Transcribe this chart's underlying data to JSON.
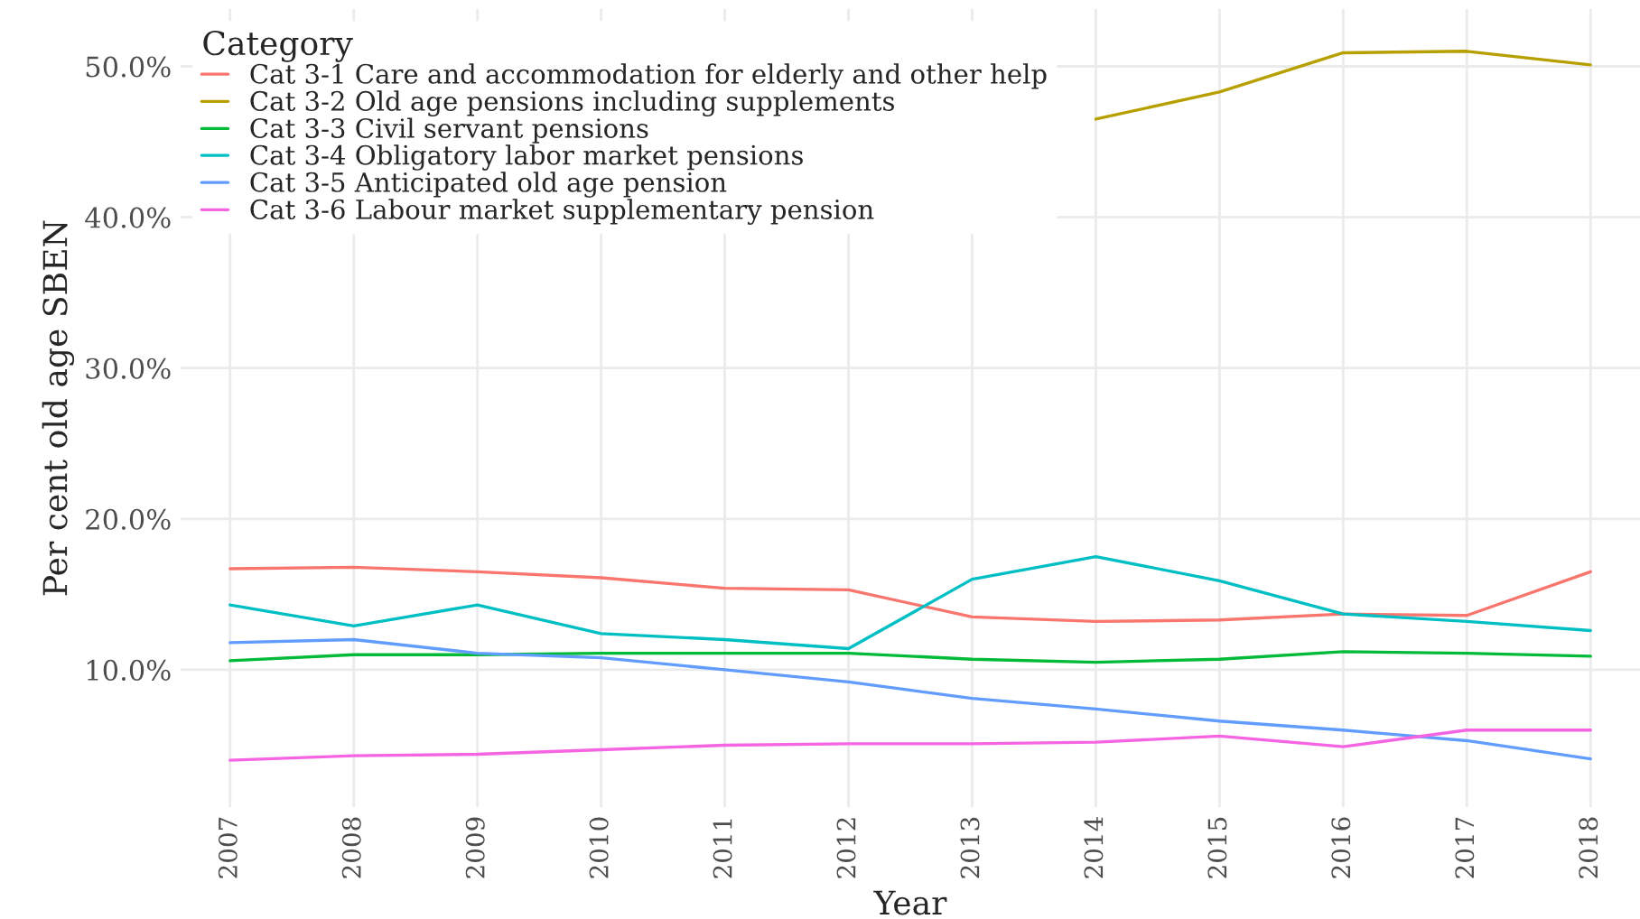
{
  "chart_data": {
    "type": "line",
    "xlabel": "Year",
    "ylabel": "Per cent old age SBEN",
    "legend_title": "Category",
    "legend": "top left",
    "grid": true,
    "categories": [
      "2007",
      "2008",
      "2009",
      "2010",
      "2011",
      "2012",
      "2013",
      "2014",
      "2015",
      "2016",
      "2017",
      "2018"
    ],
    "ylim": [
      0.9,
      53.8
    ],
    "yticks": [
      {
        "value": 10,
        "label": "10.0%"
      },
      {
        "value": 20,
        "label": "20.0%"
      },
      {
        "value": 30,
        "label": "30.0%"
      },
      {
        "value": 40,
        "label": "40.0%"
      },
      {
        "value": 50,
        "label": "50.0%"
      }
    ],
    "series": [
      {
        "name": "Cat 3-1 Care and accommodation for elderly and other help",
        "color": "#f8766d",
        "values": [
          16.7,
          16.8,
          16.5,
          16.1,
          15.4,
          15.3,
          13.5,
          13.2,
          13.3,
          13.7,
          13.6,
          16.5
        ]
      },
      {
        "name": "Cat 3-2 Old age pensions including supplements",
        "color": "#b79f00",
        "values": [
          null,
          null,
          null,
          null,
          null,
          null,
          null,
          46.5,
          48.3,
          50.9,
          51.0,
          50.1
        ]
      },
      {
        "name": "Cat 3-3 Civil servant pensions",
        "color": "#00ba38",
        "values": [
          10.6,
          11.0,
          11.0,
          11.1,
          11.1,
          11.1,
          10.7,
          10.5,
          10.7,
          11.2,
          11.1,
          10.9
        ]
      },
      {
        "name": "Cat 3-4 Obligatory labor market pensions",
        "color": "#00bfc4",
        "values": [
          14.3,
          12.9,
          14.3,
          12.4,
          12.0,
          11.4,
          16.0,
          17.5,
          15.9,
          13.7,
          13.2,
          12.6
        ]
      },
      {
        "name": "Cat 3-5 Anticipated old age pension",
        "color": "#619cff",
        "values": [
          11.8,
          12.0,
          11.1,
          10.8,
          10.0,
          9.2,
          8.1,
          7.4,
          6.6,
          6.0,
          5.3,
          4.1
        ]
      },
      {
        "name": "Cat 3-6 Labour market supplementary pension",
        "color": "#f564e3",
        "values": [
          4.0,
          4.3,
          4.4,
          4.7,
          5.0,
          5.1,
          5.1,
          5.2,
          5.6,
          4.9,
          6.0,
          6.0
        ]
      }
    ]
  }
}
